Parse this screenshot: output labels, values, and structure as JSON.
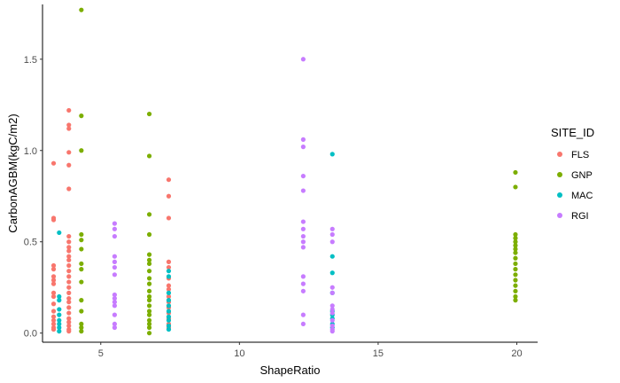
{
  "chart_data": {
    "type": "scatter",
    "xlabel": "ShapeRatio",
    "ylabel": "CarbonAGBM(kgC/m2)",
    "xlim": [
      2.9,
      20.75
    ],
    "ylim": [
      -0.05,
      1.8
    ],
    "x_ticks": [
      5,
      10,
      15,
      20
    ],
    "y_ticks": [
      0.0,
      0.5,
      1.0,
      1.5
    ],
    "x_tick_labels": [
      "5",
      "10",
      "15",
      "20"
    ],
    "y_tick_labels": [
      "0.0",
      "0.5",
      "1.0",
      "1.5"
    ],
    "grid": false,
    "legend": {
      "title": "SITE_ID",
      "position": "right"
    },
    "series": [
      {
        "name": "FLS",
        "color": "#F8766D",
        "points": [
          [
            3.3,
            0.93
          ],
          [
            3.3,
            0.63
          ],
          [
            3.3,
            0.62
          ],
          [
            3.3,
            0.37
          ],
          [
            3.3,
            0.35
          ],
          [
            3.3,
            0.31
          ],
          [
            3.3,
            0.29
          ],
          [
            3.3,
            0.27
          ],
          [
            3.3,
            0.22
          ],
          [
            3.3,
            0.2
          ],
          [
            3.3,
            0.16
          ],
          [
            3.3,
            0.12
          ],
          [
            3.3,
            0.09
          ],
          [
            3.3,
            0.07
          ],
          [
            3.3,
            0.05
          ],
          [
            3.3,
            0.03
          ],
          [
            3.3,
            0.02
          ],
          [
            3.85,
            1.22
          ],
          [
            3.85,
            1.14
          ],
          [
            3.85,
            1.12
          ],
          [
            3.85,
            0.99
          ],
          [
            3.85,
            0.92
          ],
          [
            3.85,
            0.79
          ],
          [
            3.85,
            0.53
          ],
          [
            3.85,
            0.5
          ],
          [
            3.85,
            0.47
          ],
          [
            3.85,
            0.45
          ],
          [
            3.85,
            0.42
          ],
          [
            3.85,
            0.4
          ],
          [
            3.85,
            0.37
          ],
          [
            3.85,
            0.34
          ],
          [
            3.85,
            0.31
          ],
          [
            3.85,
            0.28
          ],
          [
            3.85,
            0.25
          ],
          [
            3.85,
            0.22
          ],
          [
            3.85,
            0.19
          ],
          [
            3.85,
            0.17
          ],
          [
            3.85,
            0.14
          ],
          [
            3.85,
            0.11
          ],
          [
            3.85,
            0.08
          ],
          [
            3.85,
            0.06
          ],
          [
            3.85,
            0.04
          ],
          [
            3.85,
            0.02
          ],
          [
            3.85,
            0.01
          ],
          [
            7.45,
            0.84
          ],
          [
            7.45,
            0.75
          ],
          [
            7.45,
            0.63
          ],
          [
            7.45,
            0.39
          ],
          [
            7.45,
            0.36
          ],
          [
            7.45,
            0.3
          ],
          [
            7.45,
            0.26
          ],
          [
            7.45,
            0.24
          ],
          [
            7.45,
            0.2
          ],
          [
            7.45,
            0.17
          ],
          [
            7.45,
            0.14
          ],
          [
            7.45,
            0.11
          ],
          [
            7.45,
            0.08
          ],
          [
            7.45,
            0.05
          ],
          [
            7.45,
            0.03
          ]
        ]
      },
      {
        "name": "GNP",
        "color": "#7CAE00",
        "points": [
          [
            4.3,
            1.77
          ],
          [
            4.3,
            1.19
          ],
          [
            4.3,
            1.0
          ],
          [
            4.3,
            0.54
          ],
          [
            4.3,
            0.51
          ],
          [
            4.3,
            0.46
          ],
          [
            4.3,
            0.38
          ],
          [
            4.3,
            0.35
          ],
          [
            4.3,
            0.28
          ],
          [
            4.3,
            0.18
          ],
          [
            4.3,
            0.12
          ],
          [
            4.3,
            0.05
          ],
          [
            4.3,
            0.03
          ],
          [
            4.3,
            0.01
          ],
          [
            6.75,
            1.2
          ],
          [
            6.75,
            0.97
          ],
          [
            6.75,
            0.65
          ],
          [
            6.75,
            0.54
          ],
          [
            6.75,
            0.43
          ],
          [
            6.75,
            0.4
          ],
          [
            6.75,
            0.38
          ],
          [
            6.75,
            0.34
          ],
          [
            6.75,
            0.3
          ],
          [
            6.75,
            0.27
          ],
          [
            6.75,
            0.23
          ],
          [
            6.75,
            0.2
          ],
          [
            6.75,
            0.18
          ],
          [
            6.75,
            0.15
          ],
          [
            6.75,
            0.12
          ],
          [
            6.75,
            0.1
          ],
          [
            6.75,
            0.07
          ],
          [
            6.75,
            0.05
          ],
          [
            6.75,
            0.03
          ],
          [
            6.75,
            0.0
          ],
          [
            19.95,
            0.88
          ],
          [
            19.95,
            0.8
          ],
          [
            19.95,
            0.54
          ],
          [
            19.95,
            0.52
          ],
          [
            19.95,
            0.5
          ],
          [
            19.95,
            0.48
          ],
          [
            19.95,
            0.46
          ],
          [
            19.95,
            0.44
          ],
          [
            19.95,
            0.41
          ],
          [
            19.95,
            0.38
          ],
          [
            19.95,
            0.35
          ],
          [
            19.95,
            0.32
          ],
          [
            19.95,
            0.29
          ],
          [
            19.95,
            0.26
          ],
          [
            19.95,
            0.23
          ],
          [
            19.95,
            0.2
          ],
          [
            19.95,
            0.18
          ]
        ]
      },
      {
        "name": "MAC",
        "color": "#00BFC4",
        "points": [
          [
            3.5,
            0.55
          ],
          [
            3.5,
            0.2
          ],
          [
            3.5,
            0.18
          ],
          [
            3.5,
            0.13
          ],
          [
            3.5,
            0.1
          ],
          [
            3.5,
            0.07
          ],
          [
            3.5,
            0.05
          ],
          [
            3.5,
            0.03
          ],
          [
            3.5,
            0.01
          ],
          [
            7.45,
            0.34
          ],
          [
            7.45,
            0.31
          ],
          [
            7.45,
            0.22
          ],
          [
            7.45,
            0.18
          ],
          [
            7.45,
            0.15
          ],
          [
            7.45,
            0.12
          ],
          [
            7.45,
            0.09
          ],
          [
            7.45,
            0.07
          ],
          [
            7.45,
            0.04
          ],
          [
            7.45,
            0.02
          ],
          [
            13.35,
            0.98
          ],
          [
            13.35,
            0.42
          ],
          [
            13.35,
            0.33
          ],
          [
            13.35,
            0.22
          ],
          [
            13.35,
            0.12
          ],
          [
            13.35,
            0.1
          ],
          [
            13.35,
            0.08
          ],
          [
            13.35,
            0.05
          ],
          [
            13.35,
            0.03
          ]
        ]
      },
      {
        "name": "RGI",
        "color": "#C77CFF",
        "points": [
          [
            5.5,
            0.6
          ],
          [
            5.5,
            0.57
          ],
          [
            5.5,
            0.53
          ],
          [
            5.5,
            0.42
          ],
          [
            5.5,
            0.39
          ],
          [
            5.5,
            0.36
          ],
          [
            5.5,
            0.32
          ],
          [
            5.5,
            0.21
          ],
          [
            5.5,
            0.19
          ],
          [
            5.5,
            0.17
          ],
          [
            5.5,
            0.15
          ],
          [
            5.5,
            0.1
          ],
          [
            5.5,
            0.05
          ],
          [
            5.5,
            0.03
          ],
          [
            12.3,
            1.5
          ],
          [
            12.3,
            1.06
          ],
          [
            12.3,
            1.02
          ],
          [
            12.3,
            0.86
          ],
          [
            12.3,
            0.78
          ],
          [
            12.3,
            0.61
          ],
          [
            12.3,
            0.57
          ],
          [
            12.3,
            0.53
          ],
          [
            12.3,
            0.5
          ],
          [
            12.3,
            0.47
          ],
          [
            12.3,
            0.31
          ],
          [
            12.3,
            0.27
          ],
          [
            12.3,
            0.23
          ],
          [
            12.3,
            0.1
          ],
          [
            12.3,
            0.05
          ],
          [
            13.35,
            0.57
          ],
          [
            13.35,
            0.54
          ],
          [
            13.35,
            0.5
          ],
          [
            13.35,
            0.25
          ],
          [
            13.35,
            0.22
          ],
          [
            13.35,
            0.15
          ],
          [
            13.35,
            0.13
          ],
          [
            13.35,
            0.11
          ],
          [
            13.35,
            0.07
          ],
          [
            13.35,
            0.04
          ],
          [
            13.35,
            0.02
          ],
          [
            13.35,
            0.01
          ]
        ]
      }
    ]
  }
}
